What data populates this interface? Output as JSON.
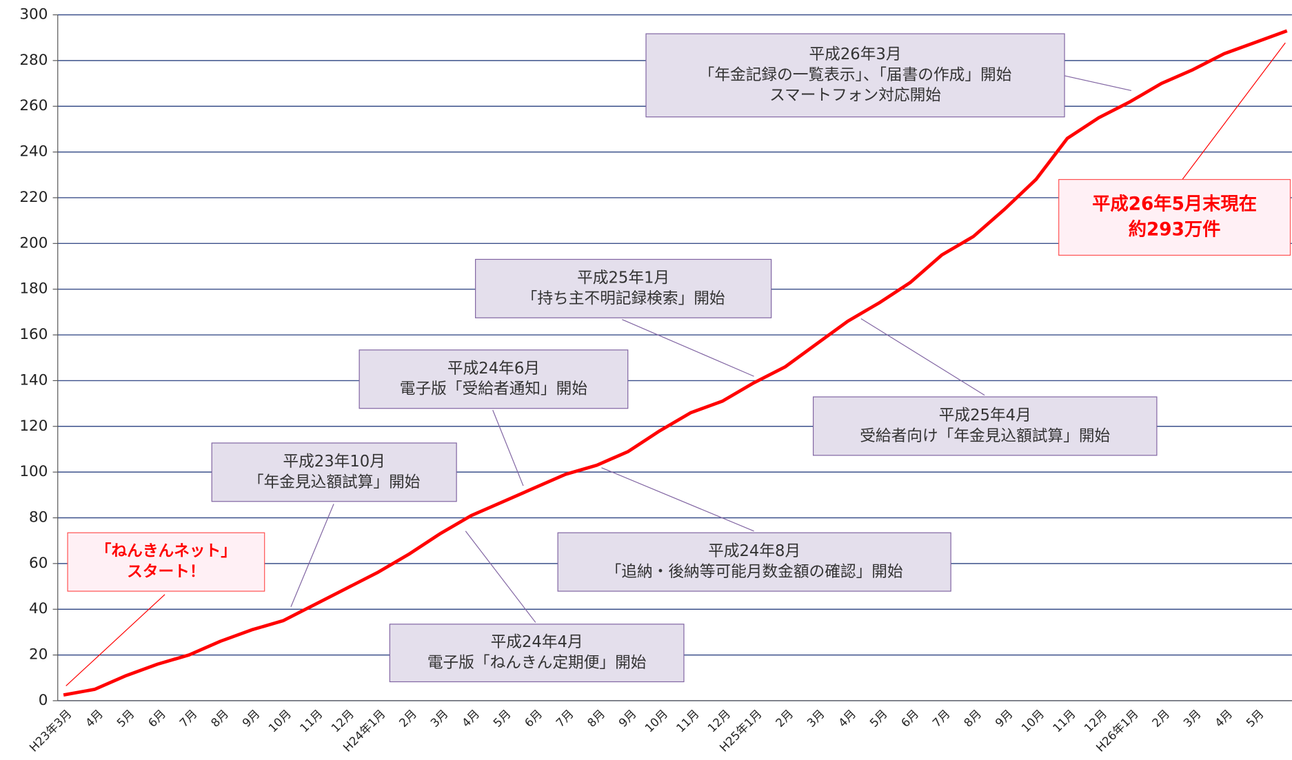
{
  "chart_data": {
    "type": "line",
    "categories": [
      "H23年3月",
      "4月",
      "5月",
      "6月",
      "7月",
      "8月",
      "9月",
      "10月",
      "11月",
      "12月",
      "H24年1月",
      "2月",
      "3月",
      "4月",
      "5月",
      "6月",
      "7月",
      "8月",
      "9月",
      "10月",
      "11月",
      "12月",
      "H25年1月",
      "2月",
      "3月",
      "4月",
      "5月",
      "6月",
      "7月",
      "8月",
      "9月",
      "10月",
      "11月",
      "12月",
      "H26年1月",
      "2月",
      "3月",
      "4月",
      "5月",
      null
    ],
    "series": [
      {
        "color": "#ff0000",
        "values": [
          2.5,
          5,
          11,
          16,
          20,
          26,
          31,
          35,
          42,
          49,
          56,
          64,
          73,
          81,
          87,
          93,
          99,
          103,
          109,
          118,
          126,
          131,
          139,
          146,
          156,
          166,
          174,
          183,
          195,
          203,
          215,
          228,
          246,
          255,
          262,
          270,
          276,
          283,
          288,
          293
        ]
      }
    ],
    "ylim": [
      0,
      300
    ],
    "yticks": [
      0,
      20,
      40,
      60,
      80,
      100,
      120,
      140,
      160,
      180,
      200,
      220,
      240,
      260,
      280,
      300
    ],
    "grid": true,
    "annotations": [
      {
        "lines": [
          "「ねんきんネット」",
          "スタート！"
        ],
        "color": "#ff0000"
      },
      {
        "lines": [
          "平成23年10月",
          "「年金見込額試算」開始"
        ]
      },
      {
        "lines": [
          "平成24年4月",
          "電子版「ねんきん定期便」開始"
        ]
      },
      {
        "lines": [
          "平成24年6月",
          "電子版「受給者通知」開始"
        ]
      },
      {
        "lines": [
          "平成24年8月",
          "「追納・後納等可能月数金額の確認」開始"
        ]
      },
      {
        "lines": [
          "平成25年1月",
          "「持ち主不明記録検索」開始"
        ]
      },
      {
        "lines": [
          "平成25年4月",
          "受給者向け「年金見込額試算」開始"
        ]
      },
      {
        "lines": [
          "平成26年3月",
          "「年金記録の一覧表示」、「届書の作成」開始",
          "スマートフォン対応開始"
        ]
      },
      {
        "lines": [
          "平成26年5月末現在",
          "約293万件"
        ],
        "color": "#ff0000"
      }
    ]
  }
}
